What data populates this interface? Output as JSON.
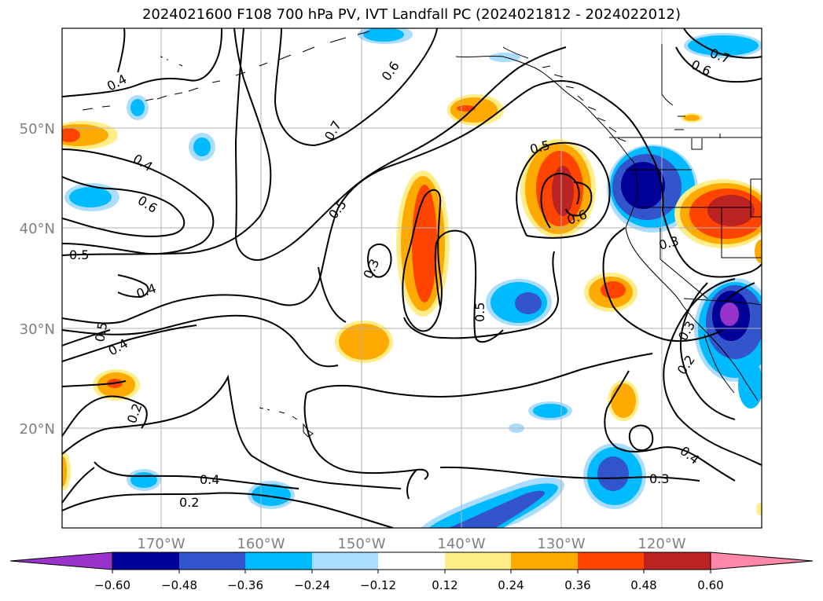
{
  "title": "2024021600 F108 700 hPa PV, IVT Landfall PC (2024021812 - 2024022012)",
  "axes": {
    "lon_labels": [
      "170°W",
      "160°W",
      "150°W",
      "140°W",
      "130°W",
      "120°W"
    ],
    "lat_labels": [
      "50°N",
      "40°N",
      "30°N",
      "20°N"
    ],
    "grid": true,
    "label_color": "#808080"
  },
  "contour_labels": [
    {
      "text": "0.4"
    },
    {
      "text": "0.4"
    },
    {
      "text": "0.6"
    },
    {
      "text": "0.5"
    },
    {
      "text": "0.4"
    },
    {
      "text": "0.5"
    },
    {
      "text": "0.4"
    },
    {
      "text": "0.2"
    },
    {
      "text": "0.4"
    },
    {
      "text": "0.2"
    },
    {
      "text": "0.7"
    },
    {
      "text": "0.5"
    },
    {
      "text": "0.6"
    },
    {
      "text": "0.3"
    },
    {
      "text": "0.5"
    },
    {
      "text": "0.5"
    },
    {
      "text": "0.6"
    },
    {
      "text": "0.3"
    },
    {
      "text": "0.3"
    },
    {
      "text": "0.2"
    },
    {
      "text": "0.4"
    },
    {
      "text": "0.3"
    },
    {
      "text": "0.7"
    },
    {
      "text": "0.6"
    }
  ],
  "colorbar": {
    "ticks": [
      "−0.60",
      "−0.48",
      "−0.36",
      "−0.24",
      "−0.12",
      "0.12",
      "0.24",
      "0.36",
      "0.48",
      "0.60"
    ],
    "colors": [
      "#9933cc",
      "#000099",
      "#3355cc",
      "#00bbff",
      "#aaddff",
      "#ffffff",
      "#ffee88",
      "#ffaa00",
      "#ff4400",
      "#bb2222",
      "#ff88aa"
    ]
  }
}
